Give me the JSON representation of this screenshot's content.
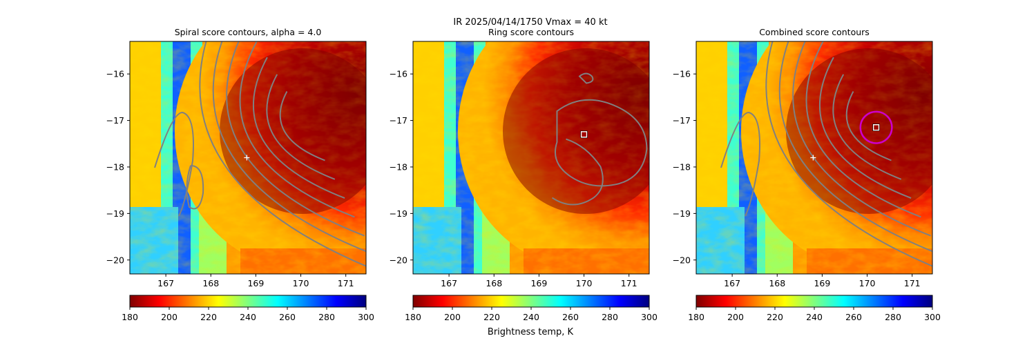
{
  "figure": {
    "suptitle_line1": "IR  2025/04/14/1750    Vmax = 40 kt",
    "colorbar_label": "Brightness temp, K",
    "colormap": [
      "#7f0000",
      "#ff0000",
      "#ff7f00",
      "#ffff00",
      "#7fff7f",
      "#00ffff",
      "#007fff",
      "#0000ff",
      "#00007f"
    ]
  },
  "chart_data": [
    {
      "type": "heatmap",
      "title": "Spiral score contours, alpha =  4.0",
      "xlim": [
        166.2,
        171.45
      ],
      "ylim": [
        -20.3,
        -15.3
      ],
      "xticks": [
        167,
        168,
        169,
        170,
        171
      ],
      "yticks": [
        -16,
        -17,
        -18,
        -19,
        -20
      ],
      "colorbar": {
        "range": [
          180,
          300
        ],
        "ticks": [
          180,
          200,
          220,
          240,
          260,
          280,
          300
        ],
        "reversed_cmap": false
      },
      "markers": [
        {
          "kind": "plus",
          "lon": 168.8,
          "lat": -17.8,
          "color": "#ffffff"
        }
      ],
      "circle": null
    },
    {
      "type": "heatmap",
      "title": "Ring score contours",
      "xlim": [
        166.2,
        171.45
      ],
      "ylim": [
        -20.3,
        -15.3
      ],
      "xticks": [
        167,
        168,
        169,
        170,
        171
      ],
      "yticks": [
        -16,
        -17,
        -18,
        -19,
        -20
      ],
      "colorbar": {
        "range": [
          180,
          300
        ],
        "ticks": [
          180,
          200,
          220,
          240,
          260,
          280,
          300
        ],
        "reversed_cmap": false
      },
      "markers": [
        {
          "kind": "square",
          "lon": 170.0,
          "lat": -17.3,
          "color": "#ffffff"
        }
      ],
      "circle": null
    },
    {
      "type": "heatmap",
      "title": "Combined score contours",
      "xlim": [
        166.2,
        171.45
      ],
      "ylim": [
        -20.3,
        -15.3
      ],
      "xticks": [
        167,
        168,
        169,
        170,
        171
      ],
      "yticks": [
        -16,
        -17,
        -18,
        -19,
        -20
      ],
      "colorbar": {
        "range": [
          180,
          300
        ],
        "ticks": [
          180,
          200,
          220,
          240,
          260,
          280,
          300
        ],
        "reversed_cmap": false
      },
      "markers": [
        {
          "kind": "plus",
          "lon": 168.8,
          "lat": -17.8,
          "color": "#ffffff"
        },
        {
          "kind": "square",
          "lon": 170.2,
          "lat": -17.15,
          "color": "#ffffff"
        }
      ],
      "circle": {
        "lon": 170.2,
        "lat": -17.15,
        "radius_deg": 0.35,
        "color": "#cc00cc"
      }
    }
  ]
}
